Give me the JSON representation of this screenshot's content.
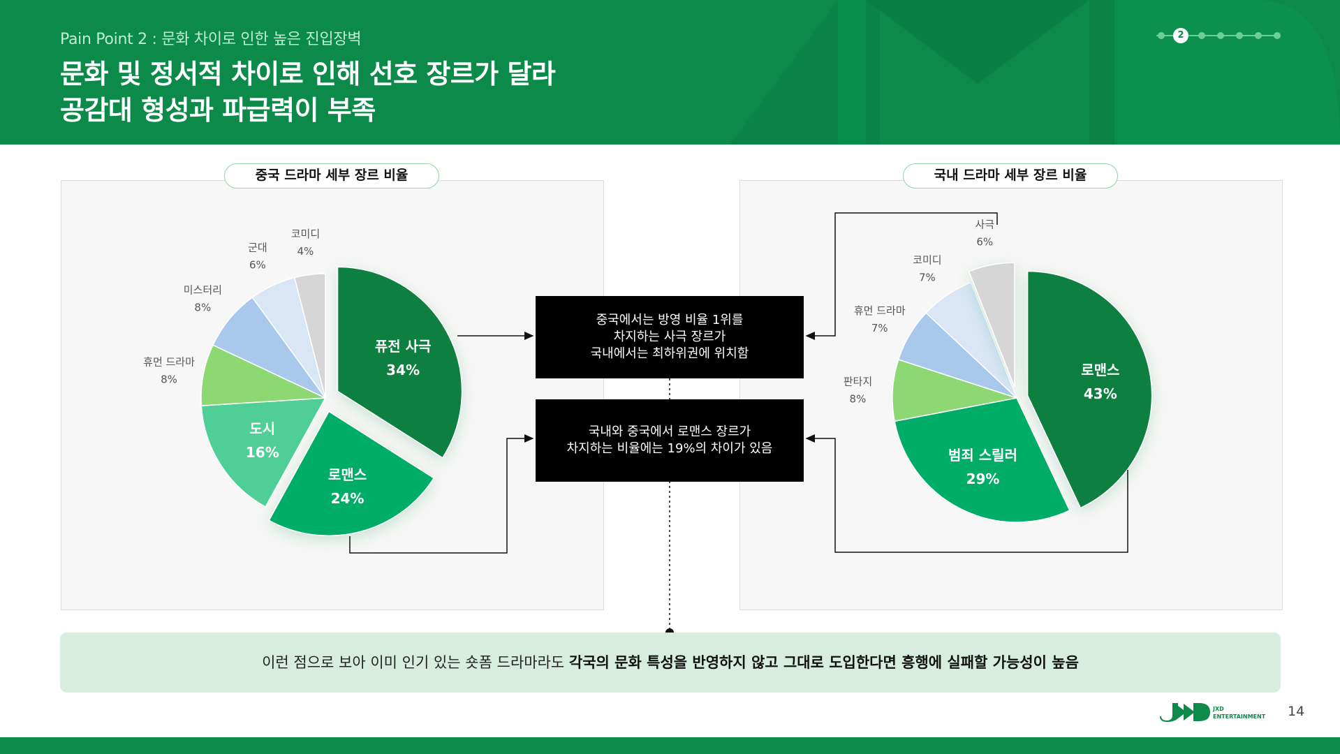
{
  "header": {
    "kicker": "Pain Point 2 : 문화 차이로 인한 높은 진입장벽",
    "title_line1": "문화 및 정서적 차이로 인해 선호 장르가 달라",
    "title_line2": "공감대 형성과 파급력이 부족",
    "active_page_dot": "2"
  },
  "panels": {
    "left_title": "중국 드라마 세부 장르 비율",
    "right_title": "국내 드라마 세부 장르 비율"
  },
  "callouts": {
    "first": [
      "중국에서는 방영 비율 1위를",
      "차지하는 사극 장르가",
      "국내에서는 최하위권에 위치함"
    ],
    "second": [
      "국내와 중국에서 로맨스 장르가",
      "차지하는 비율에는 19%의 차이가 있음"
    ]
  },
  "conclusion": {
    "plain": "이런 점으로 보아 이미 인기 있는 숏폼 드라마라도 ",
    "bold": "각국의 문화 특성을 반영하지 않고 그대로 도입한다면 흥행에 실패할 가능성이 높음"
  },
  "footer": {
    "logo_line1": "JXD",
    "logo_line2": "ENTERTAINMENT",
    "page_number": "14"
  },
  "colors": {
    "brand_green": "#0b8a49",
    "dark_green": "#0a7f3f",
    "green": "#00ad68",
    "mint": "#4fcf95",
    "light_green": "#8ed873",
    "light_blue": "#a8c8ec",
    "pale_blue": "#d8e6f6",
    "gray": "#d6d6d6"
  },
  "chart_data": [
    {
      "type": "pie",
      "title": "중국 드라마 세부 장르 비율",
      "slices": [
        {
          "label": "퓨전 사극",
          "value": 34,
          "display": "34%",
          "color": "#0a7f3f",
          "exploded": true,
          "inner": true
        },
        {
          "label": "로맨스",
          "value": 24,
          "display": "24%",
          "color": "#00ad68",
          "exploded": true,
          "inner": true
        },
        {
          "label": "도시",
          "value": 16,
          "display": "16%",
          "color": "#4fcf95",
          "exploded": false,
          "inner": true
        },
        {
          "label": "휴먼 드라마",
          "value": 8,
          "display": "8%",
          "color": "#8ed873",
          "exploded": false,
          "inner": false
        },
        {
          "label": "미스터리",
          "value": 8,
          "display": "8%",
          "color": "#a8c8ec",
          "exploded": false,
          "inner": false
        },
        {
          "label": "군대",
          "value": 6,
          "display": "6%",
          "color": "#d8e6f6",
          "exploded": false,
          "inner": false
        },
        {
          "label": "코미디",
          "value": 4,
          "display": "4%",
          "color": "#d6d6d6",
          "exploded": false,
          "inner": false
        }
      ]
    },
    {
      "type": "pie",
      "title": "국내 드라마 세부 장르 비율",
      "slices": [
        {
          "label": "로맨스",
          "value": 43,
          "display": "43%",
          "color": "#0a7f3f",
          "exploded": true,
          "inner": true
        },
        {
          "label": "범죄 스릴러",
          "value": 29,
          "display": "29%",
          "color": "#00ad68",
          "exploded": false,
          "inner": true
        },
        {
          "label": "판타지",
          "value": 8,
          "display": "8%",
          "color": "#8ed873",
          "exploded": false,
          "inner": false
        },
        {
          "label": "휴먼 드라마",
          "value": 7,
          "display": "7%",
          "color": "#a8c8ec",
          "exploded": false,
          "inner": false
        },
        {
          "label": "코미디",
          "value": 7,
          "display": "7%",
          "color": "#d8e6f6",
          "exploded": false,
          "inner": false
        },
        {
          "label": "사극",
          "value": 6,
          "display": "6%",
          "color": "#d6d6d6",
          "exploded": true,
          "inner": false
        }
      ]
    }
  ]
}
